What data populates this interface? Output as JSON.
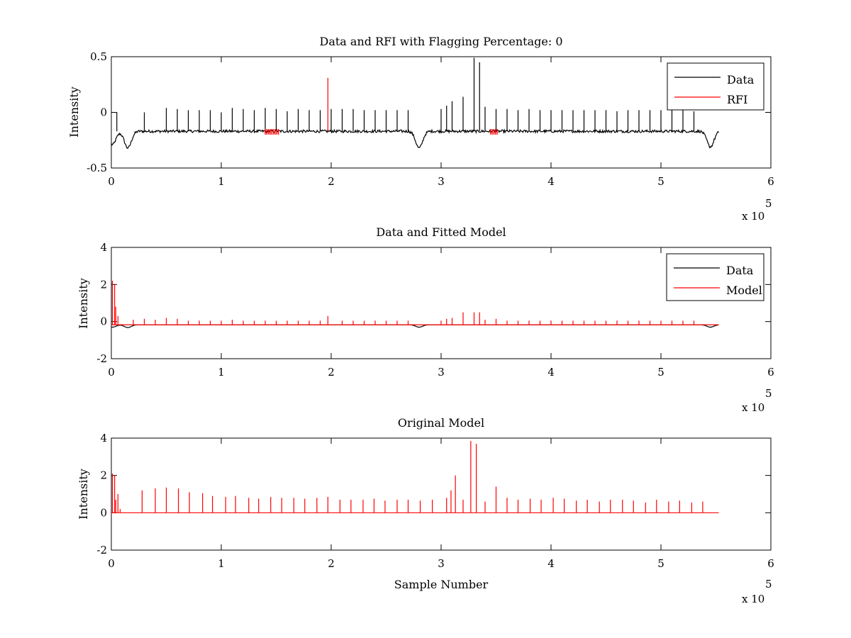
{
  "chart_data": [
    {
      "type": "line",
      "title": "Data and RFI with Flagging Percentage: 0",
      "ylabel": "Intensity",
      "xlabel": "",
      "xlim": [
        0,
        600000
      ],
      "ylim": [
        -0.5,
        0.5
      ],
      "xticks": [
        0,
        1,
        2,
        3,
        4,
        5,
        6
      ],
      "yticks": [
        "-0.5",
        "0",
        "0.5"
      ],
      "x_multiplier": "x 10",
      "x_exponent": "5",
      "legend": {
        "placement": "top-right",
        "entries": [
          {
            "name": "Data",
            "color": "#000000"
          },
          {
            "name": "RFI",
            "color": "#ff0000"
          }
        ]
      },
      "series": [
        {
          "name": "Data",
          "color": "#000000",
          "baseline": -0.17,
          "x_end": 553000,
          "spikes": [
            [
              5000,
              0.0
            ],
            [
              30000,
              0.0
            ],
            [
              50000,
              0.04
            ],
            [
              60000,
              0.03
            ],
            [
              70000,
              0.02
            ],
            [
              80000,
              0.02
            ],
            [
              90000,
              0.02
            ],
            [
              100000,
              0.0
            ],
            [
              110000,
              0.04
            ],
            [
              120000,
              0.03
            ],
            [
              130000,
              0.02
            ],
            [
              140000,
              0.04
            ],
            [
              150000,
              0.03
            ],
            [
              160000,
              0.01
            ],
            [
              170000,
              0.03
            ],
            [
              180000,
              0.02
            ],
            [
              190000,
              0.02
            ],
            [
              200000,
              0.03
            ],
            [
              210000,
              0.03
            ],
            [
              220000,
              0.03
            ],
            [
              230000,
              0.02
            ],
            [
              240000,
              0.02
            ],
            [
              250000,
              0.02
            ],
            [
              260000,
              0.02
            ],
            [
              270000,
              0.02
            ],
            [
              300000,
              0.03
            ],
            [
              305000,
              0.06
            ],
            [
              310000,
              0.1
            ],
            [
              320000,
              0.14
            ],
            [
              330000,
              0.49
            ],
            [
              335000,
              0.45
            ],
            [
              340000,
              0.05
            ],
            [
              350000,
              0.03
            ],
            [
              360000,
              0.03
            ],
            [
              370000,
              0.02
            ],
            [
              380000,
              0.03
            ],
            [
              390000,
              0.02
            ],
            [
              400000,
              0.02
            ],
            [
              410000,
              0.02
            ],
            [
              420000,
              0.02
            ],
            [
              430000,
              0.02
            ],
            [
              440000,
              0.02
            ],
            [
              450000,
              0.02
            ],
            [
              460000,
              0.01
            ],
            [
              470000,
              0.02
            ],
            [
              480000,
              0.02
            ],
            [
              490000,
              0.02
            ],
            [
              500000,
              0.02
            ],
            [
              510000,
              0.02
            ],
            [
              520000,
              0.02
            ],
            [
              530000,
              0.01
            ]
          ],
          "dips": [
            [
              1000,
              -0.29
            ],
            [
              15000,
              -0.32
            ],
            [
              280000,
              -0.32
            ],
            [
              545000,
              -0.31
            ]
          ]
        },
        {
          "name": "RFI",
          "color": "#ff0000",
          "spikes": [
            [
              197000,
              0.31
            ]
          ],
          "flag_regions": [
            [
              140000,
              152000
            ],
            [
              345000,
              352000
            ]
          ]
        }
      ]
    },
    {
      "type": "line",
      "title": "Data and Fitted Model",
      "ylabel": "Intensity",
      "xlabel": "",
      "xlim": [
        0,
        600000
      ],
      "ylim": [
        -2,
        4
      ],
      "xticks": [
        0,
        1,
        2,
        3,
        4,
        5,
        6
      ],
      "yticks": [
        "-2",
        "0",
        "2",
        "4"
      ],
      "x_multiplier": "x 10",
      "x_exponent": "5",
      "legend": {
        "placement": "top-right",
        "entries": [
          {
            "name": "Data",
            "color": "#000000"
          },
          {
            "name": "Model",
            "color": "#ff0000"
          }
        ]
      },
      "series": [
        {
          "name": "Data",
          "color": "#000000",
          "baseline": -0.17,
          "x_end": 553000,
          "dips": [
            [
              1000,
              -0.3
            ],
            [
              15000,
              -0.32
            ],
            [
              280000,
              -0.3
            ],
            [
              545000,
              -0.3
            ]
          ]
        },
        {
          "name": "Model",
          "color": "#ff0000",
          "baseline": -0.17,
          "x_end": 553000,
          "spikes": [
            [
              1000,
              2.2
            ],
            [
              3000,
              2.0
            ],
            [
              4000,
              0.8
            ],
            [
              6000,
              0.3
            ],
            [
              20000,
              0.1
            ],
            [
              30000,
              0.15
            ],
            [
              40000,
              0.1
            ],
            [
              50000,
              0.2
            ],
            [
              60000,
              0.15
            ],
            [
              70000,
              0.05
            ],
            [
              80000,
              0.05
            ],
            [
              90000,
              0.05
            ],
            [
              100000,
              0.05
            ],
            [
              110000,
              0.1
            ],
            [
              120000,
              0.05
            ],
            [
              130000,
              0.05
            ],
            [
              140000,
              0.05
            ],
            [
              150000,
              0.05
            ],
            [
              160000,
              0.05
            ],
            [
              170000,
              0.05
            ],
            [
              180000,
              0.05
            ],
            [
              190000,
              0.05
            ],
            [
              197000,
              0.3
            ],
            [
              210000,
              0.05
            ],
            [
              220000,
              0.05
            ],
            [
              230000,
              0.05
            ],
            [
              240000,
              0.05
            ],
            [
              250000,
              0.05
            ],
            [
              260000,
              0.05
            ],
            [
              270000,
              0.05
            ],
            [
              300000,
              0.05
            ],
            [
              305000,
              0.15
            ],
            [
              310000,
              0.2
            ],
            [
              320000,
              0.5
            ],
            [
              330000,
              0.5
            ],
            [
              335000,
              0.5
            ],
            [
              340000,
              0.1
            ],
            [
              350000,
              0.15
            ],
            [
              360000,
              0.05
            ],
            [
              370000,
              0.05
            ],
            [
              380000,
              0.05
            ],
            [
              390000,
              0.05
            ],
            [
              400000,
              0.05
            ],
            [
              410000,
              0.05
            ],
            [
              420000,
              0.05
            ],
            [
              430000,
              0.05
            ],
            [
              440000,
              0.05
            ],
            [
              450000,
              0.05
            ],
            [
              460000,
              0.05
            ],
            [
              470000,
              0.05
            ],
            [
              480000,
              0.05
            ],
            [
              490000,
              0.05
            ],
            [
              500000,
              0.05
            ],
            [
              510000,
              0.05
            ],
            [
              520000,
              0.05
            ],
            [
              530000,
              0.05
            ]
          ]
        }
      ]
    },
    {
      "type": "line",
      "title": "Original Model",
      "ylabel": "Intensity",
      "xlabel": "Sample Number",
      "xlim": [
        0,
        600000
      ],
      "ylim": [
        -2,
        4
      ],
      "xticks": [
        0,
        1,
        2,
        3,
        4,
        5,
        6
      ],
      "yticks": [
        "-2",
        "0",
        "2",
        "4"
      ],
      "x_multiplier": "x 10",
      "x_exponent": "5",
      "series": [
        {
          "name": "",
          "color": "#ff0000",
          "baseline": 0,
          "x_end": 553000,
          "spikes": [
            [
              1000,
              2.1
            ],
            [
              3000,
              2.0
            ],
            [
              4000,
              0.7
            ],
            [
              6000,
              1.0
            ],
            [
              8000,
              0.2
            ],
            [
              28000,
              1.2
            ],
            [
              40000,
              1.3
            ],
            [
              50000,
              1.35
            ],
            [
              61000,
              1.3
            ],
            [
              71000,
              1.1
            ],
            [
              83000,
              1.05
            ],
            [
              92000,
              0.9
            ],
            [
              104000,
              0.85
            ],
            [
              113000,
              0.9
            ],
            [
              125000,
              0.8
            ],
            [
              134000,
              0.75
            ],
            [
              145000,
              0.85
            ],
            [
              155000,
              0.8
            ],
            [
              166000,
              0.8
            ],
            [
              176000,
              0.75
            ],
            [
              187000,
              0.8
            ],
            [
              197000,
              0.85
            ],
            [
              208000,
              0.7
            ],
            [
              218000,
              0.7
            ],
            [
              229000,
              0.7
            ],
            [
              239000,
              0.75
            ],
            [
              249000,
              0.65
            ],
            [
              260000,
              0.7
            ],
            [
              270000,
              0.7
            ],
            [
              281000,
              0.65
            ],
            [
              292000,
              0.7
            ],
            [
              305000,
              0.8
            ],
            [
              309000,
              1.2
            ],
            [
              313000,
              2.0
            ],
            [
              320000,
              0.7
            ],
            [
              327000,
              3.85
            ],
            [
              332000,
              3.7
            ],
            [
              340000,
              0.6
            ],
            [
              350000,
              1.4
            ],
            [
              360000,
              0.8
            ],
            [
              370000,
              0.7
            ],
            [
              381000,
              0.75
            ],
            [
              391000,
              0.7
            ],
            [
              402000,
              0.8
            ],
            [
              412000,
              0.75
            ],
            [
              423000,
              0.65
            ],
            [
              433000,
              0.7
            ],
            [
              444000,
              0.6
            ],
            [
              454000,
              0.7
            ],
            [
              465000,
              0.7
            ],
            [
              475000,
              0.65
            ],
            [
              486000,
              0.55
            ],
            [
              496000,
              0.7
            ],
            [
              507000,
              0.6
            ],
            [
              517000,
              0.65
            ],
            [
              528000,
              0.55
            ],
            [
              538000,
              0.6
            ]
          ]
        }
      ]
    }
  ]
}
